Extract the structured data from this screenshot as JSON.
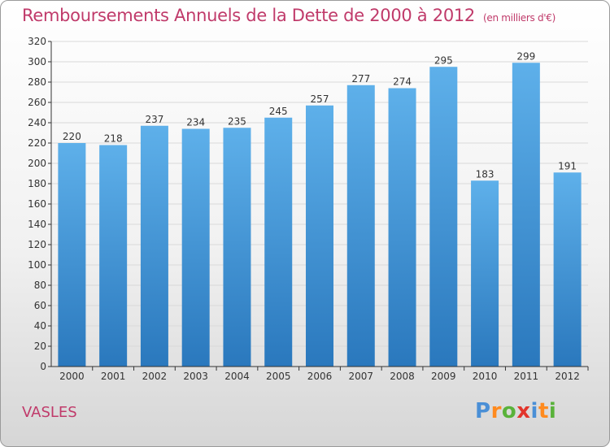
{
  "title": "Remboursements Annuels de la Dette de 2000 à 2012",
  "subtitle": "(en milliers d'€)",
  "commune": "VASLES",
  "logo": "Proxiti",
  "colors": {
    "bar_top": "#5eb0ea",
    "bar_bottom": "#2a78bd",
    "title": "#c03a6a",
    "axis": "#333333",
    "grid": "#d9d9d9"
  },
  "chart_data": {
    "type": "bar",
    "categories": [
      "2000",
      "2001",
      "2002",
      "2003",
      "2004",
      "2005",
      "2006",
      "2007",
      "2008",
      "2009",
      "2010",
      "2011",
      "2012"
    ],
    "values": [
      220,
      218,
      237,
      234,
      235,
      245,
      257,
      277,
      274,
      295,
      183,
      299,
      191
    ],
    "data_labels": [
      "220",
      "218",
      "237",
      "234",
      "235",
      "245",
      "257",
      "277",
      "274",
      "295",
      "183",
      "299",
      "191"
    ],
    "ylim": [
      0,
      320
    ],
    "yticks": [
      0,
      20,
      40,
      60,
      80,
      100,
      120,
      140,
      160,
      180,
      200,
      220,
      240,
      260,
      280,
      300,
      320
    ],
    "grid": true,
    "xlabel": "",
    "ylabel": ""
  }
}
